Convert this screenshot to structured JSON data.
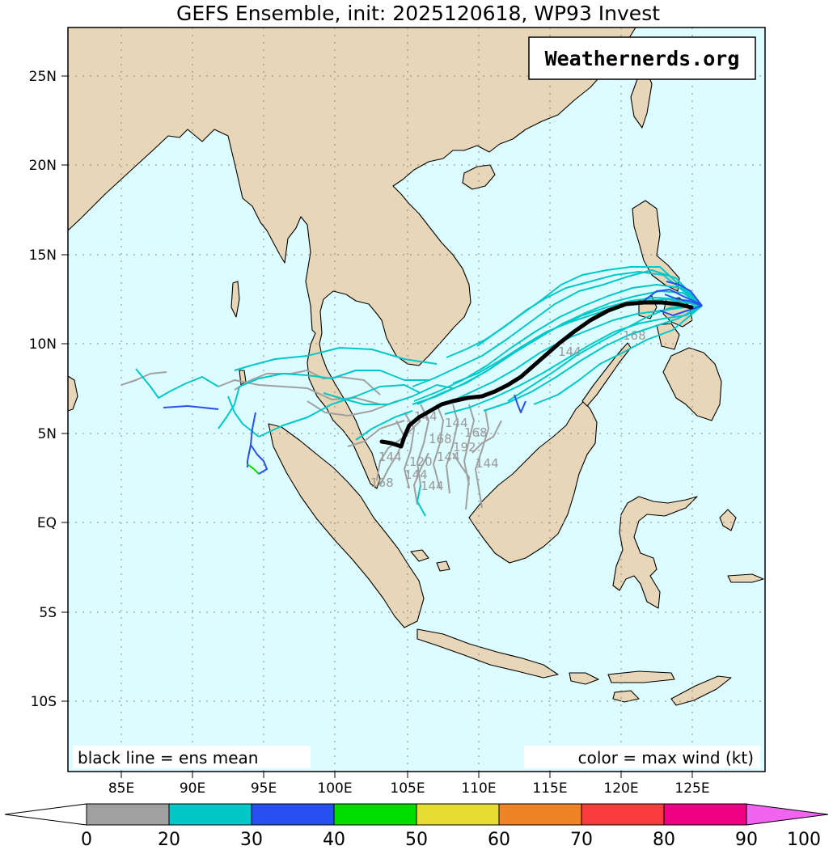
{
  "title": "GEFS Ensemble, init: 2025120618, WP93 Invest",
  "watermark": "Weathernerds.org",
  "legend_left": "black line = ens mean",
  "legend_right": "color = max wind (kt)",
  "lon_ticks": [
    "85E",
    "90E",
    "95E",
    "100E",
    "105E",
    "110E",
    "115E",
    "120E",
    "125E"
  ],
  "lat_ticks": [
    "25N",
    "20N",
    "15N",
    "10N",
    "5N",
    "EQ",
    "5S",
    "10S"
  ],
  "colorbar": {
    "ticks": [
      "0",
      "20",
      "30",
      "40",
      "50",
      "60",
      "70",
      "80",
      "90",
      "100"
    ],
    "colors": [
      "#a0a0a0",
      "#00c8c8",
      "#2850f0",
      "#00dc00",
      "#e6dc32",
      "#f08228",
      "#fa3c3c",
      "#f00082",
      "#f064f0"
    ]
  },
  "colors": {
    "ocean": "#dcfcff",
    "land": "#e8d6b8",
    "grid": "#888888",
    "mean_track": "#000000"
  },
  "forecast_hour_labels": [
    "144",
    "120",
    "144",
    "168",
    "144",
    "144",
    "192",
    "144",
    "144",
    "168",
    "168",
    "144",
    "144",
    "168"
  ]
}
